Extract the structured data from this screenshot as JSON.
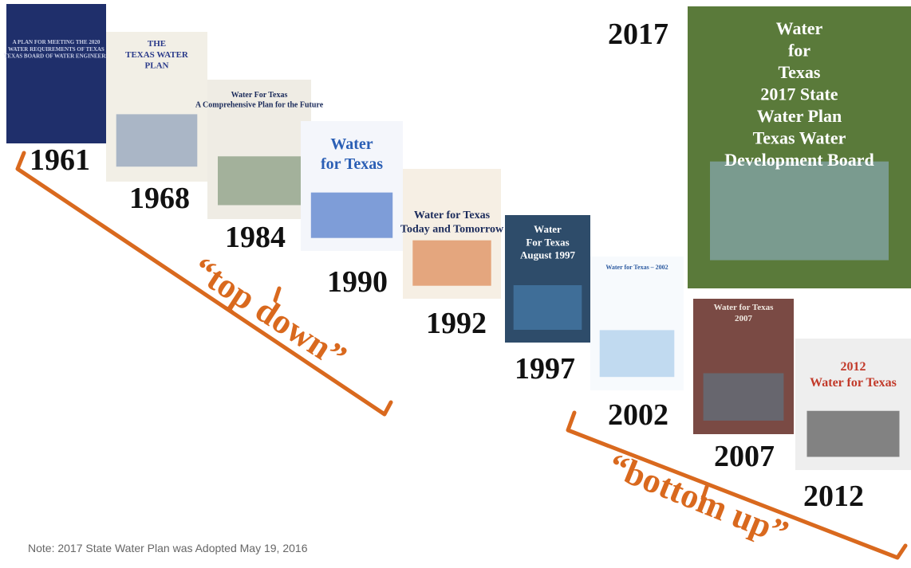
{
  "covers": [
    {
      "year": "1961",
      "lines": [
        "A PLAN FOR MEETING THE 2020",
        "WATER REQUIREMENTS OF TEXAS",
        "TEXAS BOARD OF WATER ENGINEERS"
      ]
    },
    {
      "year": "1968",
      "lines": [
        "THE",
        "TEXAS WATER",
        "PLAN"
      ]
    },
    {
      "year": "1984",
      "lines": [
        "Water For Texas",
        "A Comprehensive Plan for the Future"
      ]
    },
    {
      "year": "1990",
      "lines": [
        "Water",
        "for Texas"
      ]
    },
    {
      "year": "1992",
      "lines": [
        "Water for Texas",
        "Today and Tomorrow"
      ]
    },
    {
      "year": "1997",
      "lines": [
        "Water",
        "For Texas",
        "August 1997"
      ]
    },
    {
      "year": "2002",
      "lines": [
        "Water for Texas – 2002"
      ]
    },
    {
      "year": "2007",
      "lines": [
        "Water for Texas",
        "2007"
      ]
    },
    {
      "year": "2012",
      "lines": [
        "2012",
        "Water for Texas"
      ]
    },
    {
      "year": "2017",
      "lines": [
        "Water",
        "for",
        "Texas",
        "2017 State",
        "Water Plan",
        "Texas Water",
        "Development Board"
      ]
    }
  ],
  "annotations": {
    "top_down": "“top down”",
    "bottom_up": "“bottom up”"
  },
  "note": "Note: 2017 State Water Plan was Adopted May 19, 2016"
}
